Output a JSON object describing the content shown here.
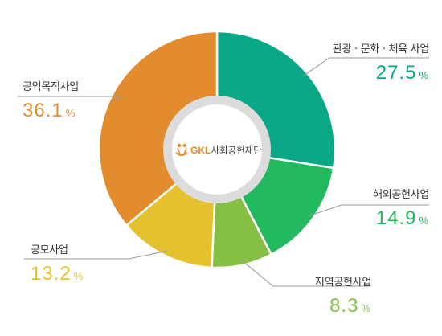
{
  "chart_data": {
    "type": "pie",
    "categories": [
      "관광 · 문화 · 체육 사업",
      "해외공헌사업",
      "지역공헌사업",
      "공모사업",
      "공익목적사업"
    ],
    "values": [
      27.5,
      14.9,
      8.3,
      13.2,
      36.1
    ],
    "colors": [
      "#0aa887",
      "#22b95f",
      "#86bf45",
      "#e6c12f",
      "#e28c2e"
    ],
    "unit": "%",
    "center_logo": {
      "brand": "GKL",
      "org": "사회공헌재단",
      "brand_color": "#e28c2e",
      "text_color": "#333333"
    }
  }
}
